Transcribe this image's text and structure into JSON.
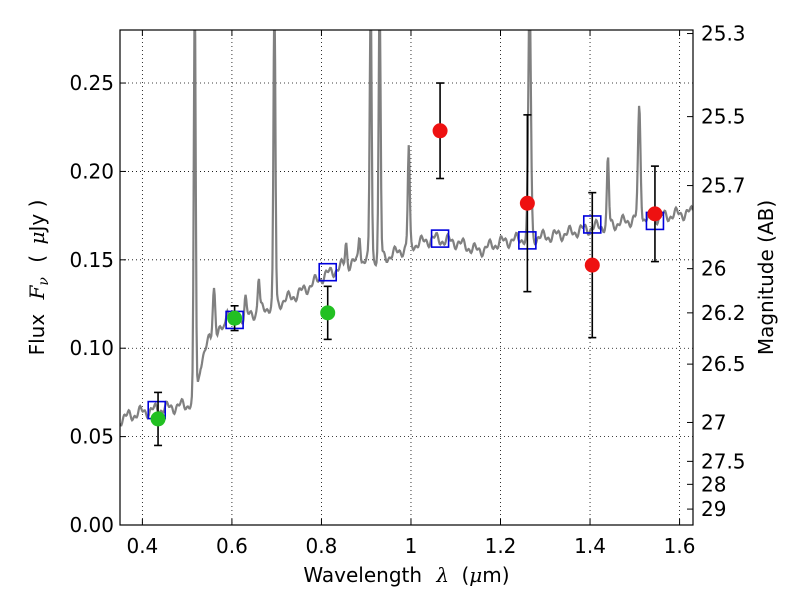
{
  "chart_data": {
    "type": "scatter",
    "xlabel_text": "Wavelength",
    "xlabel_math": "λ",
    "xlabel_unit_pre": "(",
    "xlabel_unit_mu": "μ",
    "xlabel_unit_post": "m)",
    "ylabel_text": "Flux",
    "ylabel_math": "F",
    "ylabel_sub": "ν",
    "ylabel_unit_pre": "(",
    "ylabel_unit_mu": "μ",
    "ylabel_unit_post": "Jy )",
    "y2label": "Magnitude (AB)",
    "xlim": [
      0.35,
      1.63
    ],
    "ylim": [
      0.0,
      0.28
    ],
    "grid": true,
    "x_ticks": [
      0.4,
      0.6,
      0.8,
      1.0,
      1.2,
      1.4,
      1.6
    ],
    "x_tick_labels": [
      "0.4",
      "0.6",
      "0.8",
      "1",
      "1.2",
      "1.4",
      "1.6"
    ],
    "y_ticks": [
      0.0,
      0.05,
      0.1,
      0.15,
      0.2,
      0.25
    ],
    "y_tick_labels": [
      "0.00",
      "0.05",
      "0.10",
      "0.15",
      "0.20",
      "0.25"
    ],
    "y2_ticks": [
      {
        "flux": 0.278,
        "label": "25.3"
      },
      {
        "flux": 0.231,
        "label": "25.5"
      },
      {
        "flux": 0.192,
        "label": "25.7"
      },
      {
        "flux": 0.145,
        "label": "26"
      },
      {
        "flux": 0.12,
        "label": "26.2"
      },
      {
        "flux": 0.091,
        "label": "26.5"
      },
      {
        "flux": 0.058,
        "label": "27"
      },
      {
        "flux": 0.036,
        "label": "27.5"
      },
      {
        "flux": 0.023,
        "label": "28"
      },
      {
        "flux": 0.009,
        "label": "29"
      }
    ],
    "series": [
      {
        "marker": "circle",
        "color": "#22c022",
        "points": [
          {
            "x": 0.435,
            "y": 0.06,
            "err": 0.015
          },
          {
            "x": 0.606,
            "y": 0.117,
            "err": 0.007
          },
          {
            "x": 0.814,
            "y": 0.12,
            "err": 0.015
          }
        ]
      },
      {
        "marker": "circle",
        "color": "#ee1111",
        "points": [
          {
            "x": 1.065,
            "y": 0.223,
            "err": 0.027
          },
          {
            "x": 1.26,
            "y": 0.182,
            "err": 0.05
          },
          {
            "x": 1.405,
            "y": 0.147,
            "err": 0.041
          },
          {
            "x": 1.545,
            "y": 0.176,
            "err": 0.027
          }
        ]
      },
      {
        "marker": "open-square",
        "color": "#0000dd",
        "points": [
          {
            "x": 0.432,
            "y": 0.065
          },
          {
            "x": 0.606,
            "y": 0.116
          },
          {
            "x": 0.814,
            "y": 0.143
          },
          {
            "x": 1.065,
            "y": 0.162
          },
          {
            "x": 1.26,
            "y": 0.161
          },
          {
            "x": 1.405,
            "y": 0.17
          },
          {
            "x": 1.545,
            "y": 0.172
          }
        ]
      }
    ],
    "spectrum": {
      "color": "#808080",
      "continuum": [
        [
          0.35,
          0.06
        ],
        [
          0.4,
          0.064
        ],
        [
          0.45,
          0.066
        ],
        [
          0.5,
          0.068
        ],
        [
          0.52,
          0.07
        ],
        [
          0.53,
          0.092
        ],
        [
          0.55,
          0.105
        ],
        [
          0.6,
          0.114
        ],
        [
          0.65,
          0.12
        ],
        [
          0.7,
          0.125
        ],
        [
          0.75,
          0.131
        ],
        [
          0.8,
          0.14
        ],
        [
          0.85,
          0.147
        ],
        [
          0.9,
          0.15
        ],
        [
          0.95,
          0.152
        ],
        [
          1.0,
          0.158
        ],
        [
          1.05,
          0.162
        ],
        [
          1.1,
          0.16
        ],
        [
          1.15,
          0.155
        ],
        [
          1.2,
          0.16
        ],
        [
          1.25,
          0.162
        ],
        [
          1.3,
          0.163
        ],
        [
          1.35,
          0.165
        ],
        [
          1.4,
          0.168
        ],
        [
          1.45,
          0.17
        ],
        [
          1.5,
          0.173
        ],
        [
          1.55,
          0.174
        ],
        [
          1.6,
          0.176
        ],
        [
          1.63,
          0.177
        ]
      ],
      "lines": [
        {
          "x": 0.517,
          "peak": 0.3,
          "width": 0.003
        },
        {
          "x": 0.56,
          "peak": 0.135,
          "width": 0.004
        },
        {
          "x": 0.59,
          "peak": 0.125,
          "width": 0.004
        },
        {
          "x": 0.63,
          "peak": 0.128,
          "width": 0.003
        },
        {
          "x": 0.66,
          "peak": 0.14,
          "width": 0.003
        },
        {
          "x": 0.695,
          "peak": 0.3,
          "width": 0.003
        },
        {
          "x": 0.855,
          "peak": 0.16,
          "width": 0.003
        },
        {
          "x": 0.885,
          "peak": 0.165,
          "width": 0.003
        },
        {
          "x": 0.91,
          "peak": 0.3,
          "width": 0.003
        },
        {
          "x": 0.93,
          "peak": 0.3,
          "width": 0.003
        },
        {
          "x": 0.995,
          "peak": 0.213,
          "width": 0.003
        },
        {
          "x": 1.265,
          "peak": 0.3,
          "width": 0.004
        },
        {
          "x": 1.44,
          "peak": 0.207,
          "width": 0.003
        },
        {
          "x": 1.51,
          "peak": 0.236,
          "width": 0.004
        }
      ]
    }
  }
}
